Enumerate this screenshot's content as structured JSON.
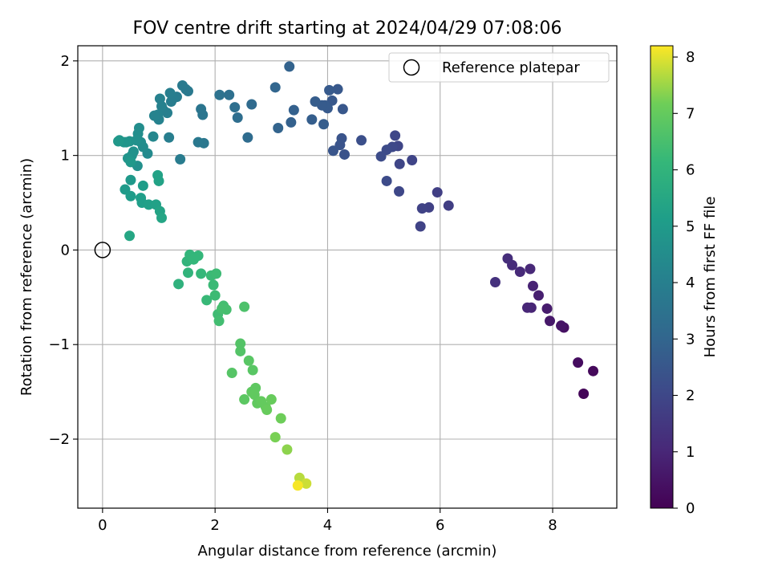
{
  "chart_data": {
    "type": "scatter",
    "title": "FOV centre drift starting at 2024/04/29 07:08:06",
    "xlabel": "Angular distance from reference (arcmin)",
    "ylabel": "Rotation from reference (arcmin)",
    "xlim": [
      -0.44,
      9.14
    ],
    "ylim": [
      -2.73,
      2.16
    ],
    "xticks": [
      0,
      2,
      4,
      6,
      8
    ],
    "yticks": [
      -2,
      -1,
      0,
      1,
      2
    ],
    "xtick_labels": [
      "0",
      "2",
      "4",
      "6",
      "8"
    ],
    "ytick_labels": [
      "−2",
      "−1",
      "0",
      "1",
      "2"
    ],
    "grid": true,
    "legend": {
      "placement": "top-right",
      "label": "Reference platepar"
    },
    "reference_point": {
      "x": 0,
      "y": 0
    },
    "colorbar": {
      "label": "Hours from first FF file",
      "colormap": "viridis",
      "range": [
        0,
        8.2
      ],
      "ticks": [
        0,
        1,
        2,
        3,
        4,
        5,
        6,
        7,
        8
      ],
      "tick_labels": [
        "0",
        "1",
        "2",
        "3",
        "4",
        "5",
        "6",
        "7",
        "8"
      ]
    },
    "points": [
      {
        "x": 8.55,
        "y": -1.52,
        "c": 0.1
      },
      {
        "x": 8.72,
        "y": -1.28,
        "c": 0.2
      },
      {
        "x": 8.45,
        "y": -1.19,
        "c": 0.3
      },
      {
        "x": 8.2,
        "y": -0.82,
        "c": 0.4
      },
      {
        "x": 8.15,
        "y": -0.8,
        "c": 0.5
      },
      {
        "x": 7.95,
        "y": -0.75,
        "c": 0.6
      },
      {
        "x": 7.9,
        "y": -0.62,
        "c": 0.7
      },
      {
        "x": 7.75,
        "y": -0.48,
        "c": 0.8
      },
      {
        "x": 7.65,
        "y": -0.38,
        "c": 0.9
      },
      {
        "x": 7.62,
        "y": -0.61,
        "c": 0.95
      },
      {
        "x": 7.55,
        "y": -0.61,
        "c": 1.0
      },
      {
        "x": 7.6,
        "y": -0.2,
        "c": 1.05
      },
      {
        "x": 7.42,
        "y": -0.23,
        "c": 1.1
      },
      {
        "x": 7.28,
        "y": -0.16,
        "c": 1.15
      },
      {
        "x": 7.2,
        "y": -0.09,
        "c": 1.2
      },
      {
        "x": 6.98,
        "y": -0.34,
        "c": 1.3
      },
      {
        "x": 6.15,
        "y": 0.47,
        "c": 1.7
      },
      {
        "x": 5.95,
        "y": 0.61,
        "c": 1.75
      },
      {
        "x": 5.8,
        "y": 0.45,
        "c": 1.8
      },
      {
        "x": 5.68,
        "y": 0.44,
        "c": 1.85
      },
      {
        "x": 5.65,
        "y": 0.25,
        "c": 1.85
      },
      {
        "x": 5.5,
        "y": 0.95,
        "c": 1.9
      },
      {
        "x": 5.28,
        "y": 0.91,
        "c": 1.95
      },
      {
        "x": 5.25,
        "y": 1.1,
        "c": 1.95
      },
      {
        "x": 5.27,
        "y": 0.62,
        "c": 2.0
      },
      {
        "x": 5.2,
        "y": 1.21,
        "c": 2.0
      },
      {
        "x": 5.15,
        "y": 1.09,
        "c": 2.05
      },
      {
        "x": 5.05,
        "y": 1.06,
        "c": 2.1
      },
      {
        "x": 5.05,
        "y": 0.73,
        "c": 2.1
      },
      {
        "x": 4.95,
        "y": 0.99,
        "c": 2.15
      },
      {
        "x": 4.6,
        "y": 1.16,
        "c": 2.25
      },
      {
        "x": 4.3,
        "y": 1.01,
        "c": 2.35
      },
      {
        "x": 4.25,
        "y": 1.18,
        "c": 2.4
      },
      {
        "x": 4.22,
        "y": 1.11,
        "c": 2.4
      },
      {
        "x": 4.1,
        "y": 1.05,
        "c": 2.45
      },
      {
        "x": 4.27,
        "y": 1.49,
        "c": 2.5
      },
      {
        "x": 4.18,
        "y": 1.7,
        "c": 2.55
      },
      {
        "x": 4.08,
        "y": 1.58,
        "c": 2.55
      },
      {
        "x": 4.03,
        "y": 1.69,
        "c": 2.6
      },
      {
        "x": 4.0,
        "y": 1.5,
        "c": 2.6
      },
      {
        "x": 3.95,
        "y": 1.53,
        "c": 2.65
      },
      {
        "x": 3.9,
        "y": 1.53,
        "c": 2.65
      },
      {
        "x": 3.93,
        "y": 1.33,
        "c": 2.7
      },
      {
        "x": 3.78,
        "y": 1.57,
        "c": 2.7
      },
      {
        "x": 3.72,
        "y": 1.38,
        "c": 2.75
      },
      {
        "x": 3.4,
        "y": 1.48,
        "c": 2.85
      },
      {
        "x": 3.35,
        "y": 1.35,
        "c": 2.85
      },
      {
        "x": 3.32,
        "y": 1.94,
        "c": 2.9
      },
      {
        "x": 3.12,
        "y": 1.29,
        "c": 2.95
      },
      {
        "x": 3.07,
        "y": 1.72,
        "c": 3.0
      },
      {
        "x": 2.65,
        "y": 1.54,
        "c": 3.2
      },
      {
        "x": 2.58,
        "y": 1.19,
        "c": 3.25
      },
      {
        "x": 2.4,
        "y": 1.4,
        "c": 3.3
      },
      {
        "x": 2.35,
        "y": 1.51,
        "c": 3.35
      },
      {
        "x": 2.25,
        "y": 1.64,
        "c": 3.4
      },
      {
        "x": 2.08,
        "y": 1.64,
        "c": 3.45
      },
      {
        "x": 1.78,
        "y": 1.43,
        "c": 3.6
      },
      {
        "x": 1.75,
        "y": 1.49,
        "c": 3.6
      },
      {
        "x": 1.8,
        "y": 1.13,
        "c": 3.65
      },
      {
        "x": 1.7,
        "y": 1.14,
        "c": 3.7
      },
      {
        "x": 1.52,
        "y": 1.68,
        "c": 3.75
      },
      {
        "x": 1.48,
        "y": 1.7,
        "c": 3.75
      },
      {
        "x": 1.42,
        "y": 1.74,
        "c": 3.8
      },
      {
        "x": 1.38,
        "y": 0.96,
        "c": 3.85
      },
      {
        "x": 1.32,
        "y": 1.62,
        "c": 3.85
      },
      {
        "x": 1.25,
        "y": 1.6,
        "c": 3.9
      },
      {
        "x": 1.22,
        "y": 1.57,
        "c": 3.9
      },
      {
        "x": 1.2,
        "y": 1.66,
        "c": 3.95
      },
      {
        "x": 1.18,
        "y": 1.19,
        "c": 3.95
      },
      {
        "x": 1.15,
        "y": 1.45,
        "c": 4.0
      },
      {
        "x": 1.08,
        "y": 1.48,
        "c": 4.0
      },
      {
        "x": 1.05,
        "y": 1.52,
        "c": 4.05
      },
      {
        "x": 1.02,
        "y": 1.6,
        "c": 4.05
      },
      {
        "x": 1.0,
        "y": 1.38,
        "c": 4.1
      },
      {
        "x": 0.98,
        "y": 1.43,
        "c": 4.1
      },
      {
        "x": 0.92,
        "y": 1.42,
        "c": 4.15
      },
      {
        "x": 0.9,
        "y": 1.2,
        "c": 4.3
      },
      {
        "x": 0.8,
        "y": 1.02,
        "c": 4.4
      },
      {
        "x": 0.72,
        "y": 1.09,
        "c": 4.45
      },
      {
        "x": 0.68,
        "y": 1.14,
        "c": 4.5
      },
      {
        "x": 0.65,
        "y": 1.29,
        "c": 4.5
      },
      {
        "x": 0.63,
        "y": 1.23,
        "c": 4.55
      },
      {
        "x": 0.6,
        "y": 1.16,
        "c": 4.6
      },
      {
        "x": 0.62,
        "y": 0.89,
        "c": 4.6
      },
      {
        "x": 0.55,
        "y": 1.04,
        "c": 4.65
      },
      {
        "x": 0.52,
        "y": 1.0,
        "c": 4.7
      },
      {
        "x": 0.48,
        "y": 1.15,
        "c": 4.7
      },
      {
        "x": 0.45,
        "y": 0.97,
        "c": 4.75
      },
      {
        "x": 0.42,
        "y": 1.14,
        "c": 4.8
      },
      {
        "x": 0.38,
        "y": 1.14,
        "c": 4.8
      },
      {
        "x": 0.3,
        "y": 1.16,
        "c": 4.85
      },
      {
        "x": 0.28,
        "y": 1.15,
        "c": 4.9
      },
      {
        "x": 0.5,
        "y": 0.93,
        "c": 4.9
      },
      {
        "x": 0.5,
        "y": 0.74,
        "c": 4.95
      },
      {
        "x": 0.4,
        "y": 0.64,
        "c": 5.0
      },
      {
        "x": 0.5,
        "y": 0.57,
        "c": 5.05
      },
      {
        "x": 0.72,
        "y": 0.68,
        "c": 5.1
      },
      {
        "x": 0.7,
        "y": 0.5,
        "c": 5.15
      },
      {
        "x": 0.68,
        "y": 0.55,
        "c": 5.15
      },
      {
        "x": 0.82,
        "y": 0.48,
        "c": 5.2
      },
      {
        "x": 0.95,
        "y": 0.48,
        "c": 5.25
      },
      {
        "x": 0.98,
        "y": 0.79,
        "c": 5.3
      },
      {
        "x": 1.0,
        "y": 0.73,
        "c": 5.3
      },
      {
        "x": 1.02,
        "y": 0.41,
        "c": 5.35
      },
      {
        "x": 1.05,
        "y": 0.34,
        "c": 5.4
      },
      {
        "x": 0.48,
        "y": 0.15,
        "c": 5.45
      },
      {
        "x": 1.35,
        "y": -0.36,
        "c": 5.9
      },
      {
        "x": 1.52,
        "y": -0.24,
        "c": 6.0
      },
      {
        "x": 1.5,
        "y": -0.12,
        "c": 6.0
      },
      {
        "x": 1.55,
        "y": -0.05,
        "c": 6.05
      },
      {
        "x": 1.62,
        "y": -0.1,
        "c": 6.1
      },
      {
        "x": 1.7,
        "y": -0.06,
        "c": 6.1
      },
      {
        "x": 1.75,
        "y": -0.25,
        "c": 6.15
      },
      {
        "x": 1.85,
        "y": -0.53,
        "c": 6.2
      },
      {
        "x": 1.93,
        "y": -0.27,
        "c": 6.25
      },
      {
        "x": 1.97,
        "y": -0.37,
        "c": 6.25
      },
      {
        "x": 2.02,
        "y": -0.25,
        "c": 6.3
      },
      {
        "x": 2.0,
        "y": -0.48,
        "c": 6.3
      },
      {
        "x": 2.05,
        "y": -0.68,
        "c": 6.35
      },
      {
        "x": 2.07,
        "y": -0.75,
        "c": 6.4
      },
      {
        "x": 2.15,
        "y": -0.59,
        "c": 6.4
      },
      {
        "x": 2.2,
        "y": -0.63,
        "c": 6.45
      },
      {
        "x": 2.12,
        "y": -0.62,
        "c": 6.45
      },
      {
        "x": 2.52,
        "y": -0.6,
        "c": 6.6
      },
      {
        "x": 2.45,
        "y": -0.99,
        "c": 6.7
      },
      {
        "x": 2.45,
        "y": -1.07,
        "c": 6.7
      },
      {
        "x": 2.3,
        "y": -1.3,
        "c": 6.75
      },
      {
        "x": 2.6,
        "y": -1.17,
        "c": 6.8
      },
      {
        "x": 2.67,
        "y": -1.27,
        "c": 6.8
      },
      {
        "x": 2.52,
        "y": -1.58,
        "c": 6.85
      },
      {
        "x": 2.65,
        "y": -1.5,
        "c": 6.9
      },
      {
        "x": 2.72,
        "y": -1.46,
        "c": 6.9
      },
      {
        "x": 2.7,
        "y": -1.53,
        "c": 6.95
      },
      {
        "x": 2.75,
        "y": -1.62,
        "c": 6.95
      },
      {
        "x": 2.82,
        "y": -1.6,
        "c": 7.0
      },
      {
        "x": 2.9,
        "y": -1.66,
        "c": 7.0
      },
      {
        "x": 2.92,
        "y": -1.69,
        "c": 7.05
      },
      {
        "x": 3.0,
        "y": -1.58,
        "c": 7.05
      },
      {
        "x": 3.17,
        "y": -1.78,
        "c": 7.15
      },
      {
        "x": 3.07,
        "y": -1.98,
        "c": 7.25
      },
      {
        "x": 3.28,
        "y": -2.11,
        "c": 7.4
      },
      {
        "x": 3.5,
        "y": -2.41,
        "c": 7.7
      },
      {
        "x": 3.62,
        "y": -2.47,
        "c": 7.85
      },
      {
        "x": 3.47,
        "y": -2.49,
        "c": 8.15
      }
    ]
  }
}
